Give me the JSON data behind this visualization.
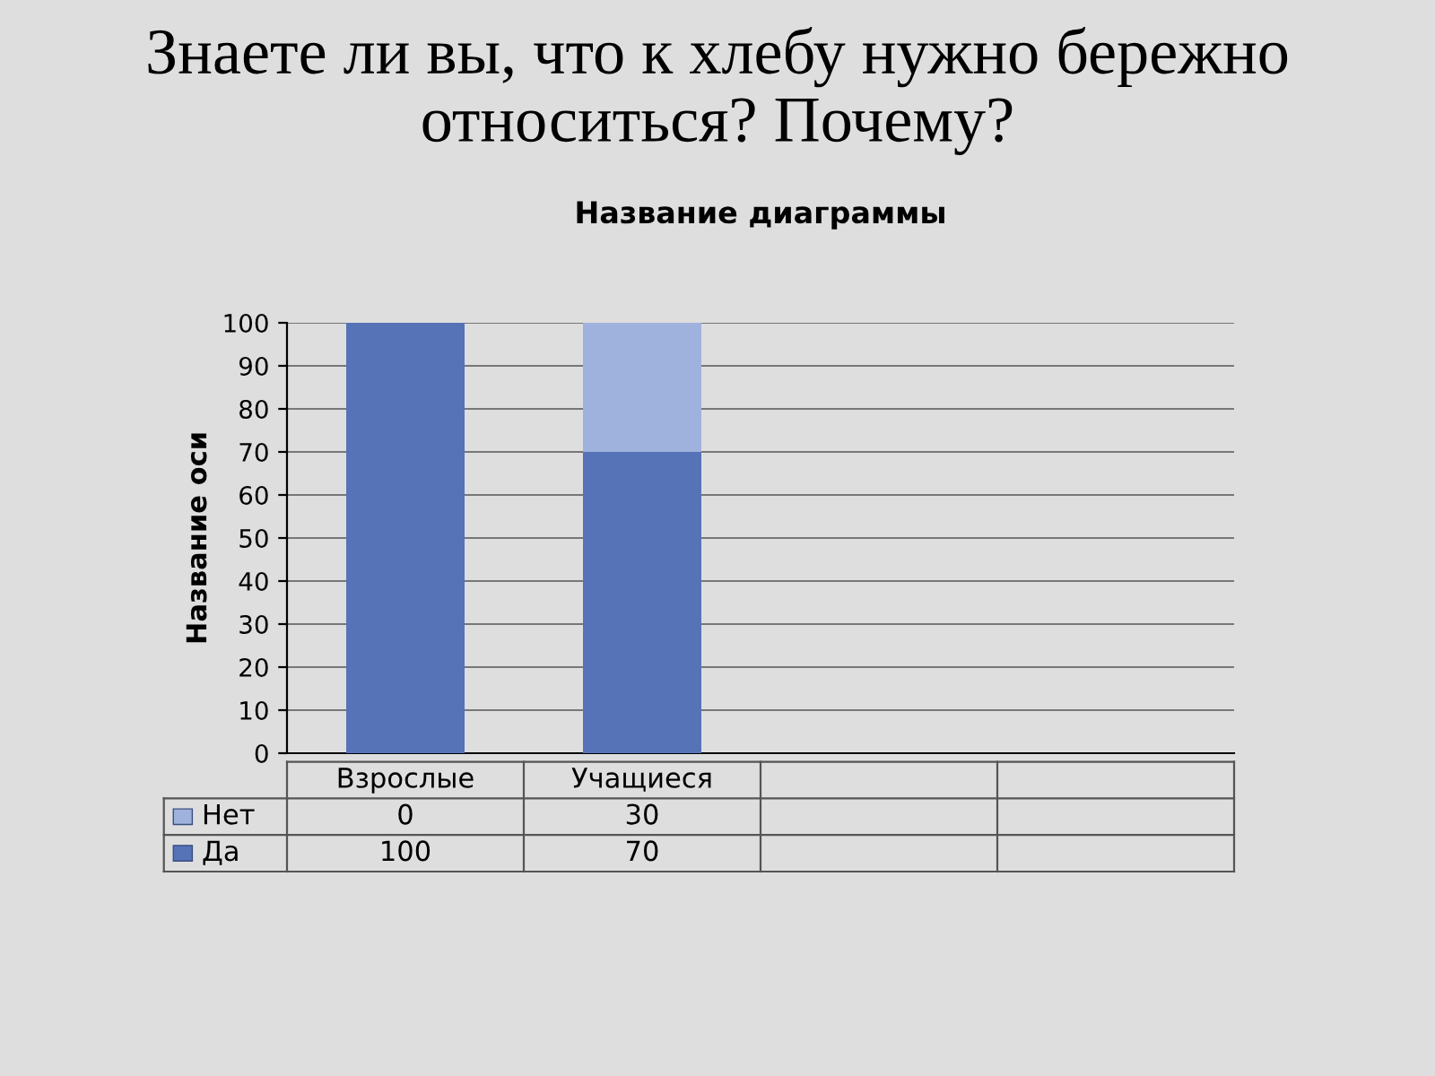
{
  "chart_data": {
    "type": "bar",
    "stacked": true,
    "title": "Знаете ли вы, что к хлебу нужно бережно относиться? Почему?",
    "subtitle": "Название диаграммы",
    "ylabel": "Название оси",
    "categories": [
      "Взрослые",
      "Учащиеся",
      null,
      null
    ],
    "series": [
      {
        "name": "Да",
        "color": "#5673b8",
        "values": [
          100,
          70,
          null,
          null
        ]
      },
      {
        "name": "Нет",
        "color": "#9fb1dd",
        "values": [
          0,
          30,
          null,
          null
        ]
      }
    ],
    "ylim": [
      0,
      100
    ],
    "yticks": [
      0,
      10,
      20,
      30,
      40,
      50,
      60,
      70,
      80,
      90,
      100
    ],
    "grid": "y",
    "data_labels": true,
    "legend": "bottom left"
  }
}
